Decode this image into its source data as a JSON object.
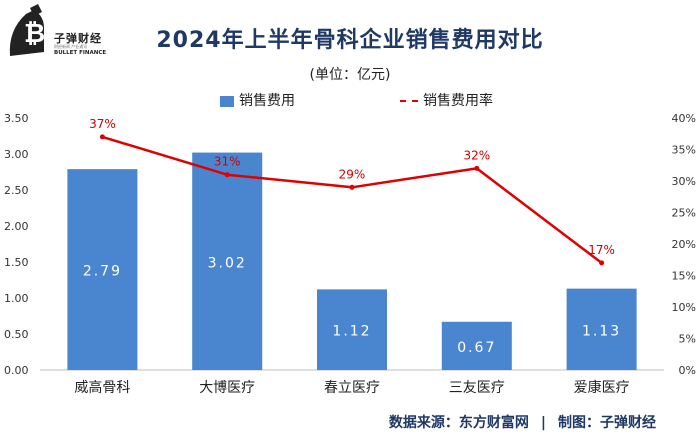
{
  "branding": {
    "name": "子弹财经",
    "tagline": "财经新闻 产业通讯",
    "english": "BULLET FINANCE"
  },
  "header": {
    "title": "2024年上半年骨科企业销售费用对比",
    "unit": "(单位：亿元)"
  },
  "legend": {
    "bar_label": "销售费用",
    "line_label": "销售费用率"
  },
  "footer": {
    "source": "数据来源：东方财富网",
    "separator": "|",
    "credit": "制图：子弹财经"
  },
  "colors": {
    "bar": "#4a86d0",
    "line": "#e00000",
    "title": "#1f3864"
  },
  "chart_data": {
    "type": "bar",
    "title": "2024年上半年骨科企业销售费用对比",
    "categories": [
      "威高骨科",
      "大博医疗",
      "春立医疗",
      "三友医疗",
      "爱康医疗"
    ],
    "series": [
      {
        "name": "销售费用",
        "type": "bar",
        "axis": "left",
        "values": [
          2.79,
          3.02,
          1.12,
          0.67,
          1.13
        ],
        "labels": [
          "2.79",
          "3.02",
          "1.12",
          "0.67",
          "1.13"
        ]
      },
      {
        "name": "销售费用率",
        "type": "line",
        "axis": "right",
        "values": [
          37,
          31,
          29,
          32,
          17
        ],
        "labels": [
          "37%",
          "31%",
          "29%",
          "32%",
          "17%"
        ]
      }
    ],
    "y_left": {
      "min": 0,
      "max": 3.5,
      "ticks": [
        "0.00",
        "0.50",
        "1.00",
        "1.50",
        "2.00",
        "2.50",
        "3.00",
        "3.50"
      ]
    },
    "y_right": {
      "min": 0,
      "max": 40,
      "ticks": [
        "0%",
        "5%",
        "10%",
        "15%",
        "20%",
        "25%",
        "30%",
        "35%",
        "40%"
      ]
    },
    "grid": false,
    "legend_position": "top"
  }
}
